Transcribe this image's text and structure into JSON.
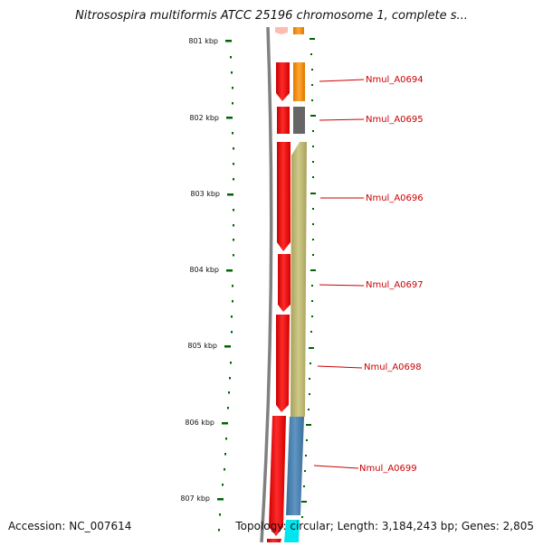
{
  "title": "Nitrosospira multiformis ATCC 25196 chromosome 1, complete s...",
  "footer": {
    "accession": "Accession: NC_007614",
    "topology": "Topology: circular; Length: 3,184,243 bp; Genes: 2,805"
  },
  "ruler": {
    "labels": [
      "801 kbp",
      "802 kbp",
      "803 kbp",
      "804 kbp",
      "805 kbp",
      "806 kbp",
      "807 kbp"
    ]
  },
  "genes": [
    "Nmul_A0694",
    "Nmul_A0695",
    "Nmul_A0696",
    "Nmul_A0697",
    "Nmul_A0698",
    "Nmul_A0699"
  ],
  "colors": {
    "cds": "#ff0000",
    "orange": "#ff8c00",
    "gray": "#666666",
    "khaki": "#bdb76b",
    "steelblue": "#4682b4",
    "cyan": "#00e5ee",
    "backbone": "#808080",
    "tick": "#006400",
    "label": "#cc0000"
  }
}
